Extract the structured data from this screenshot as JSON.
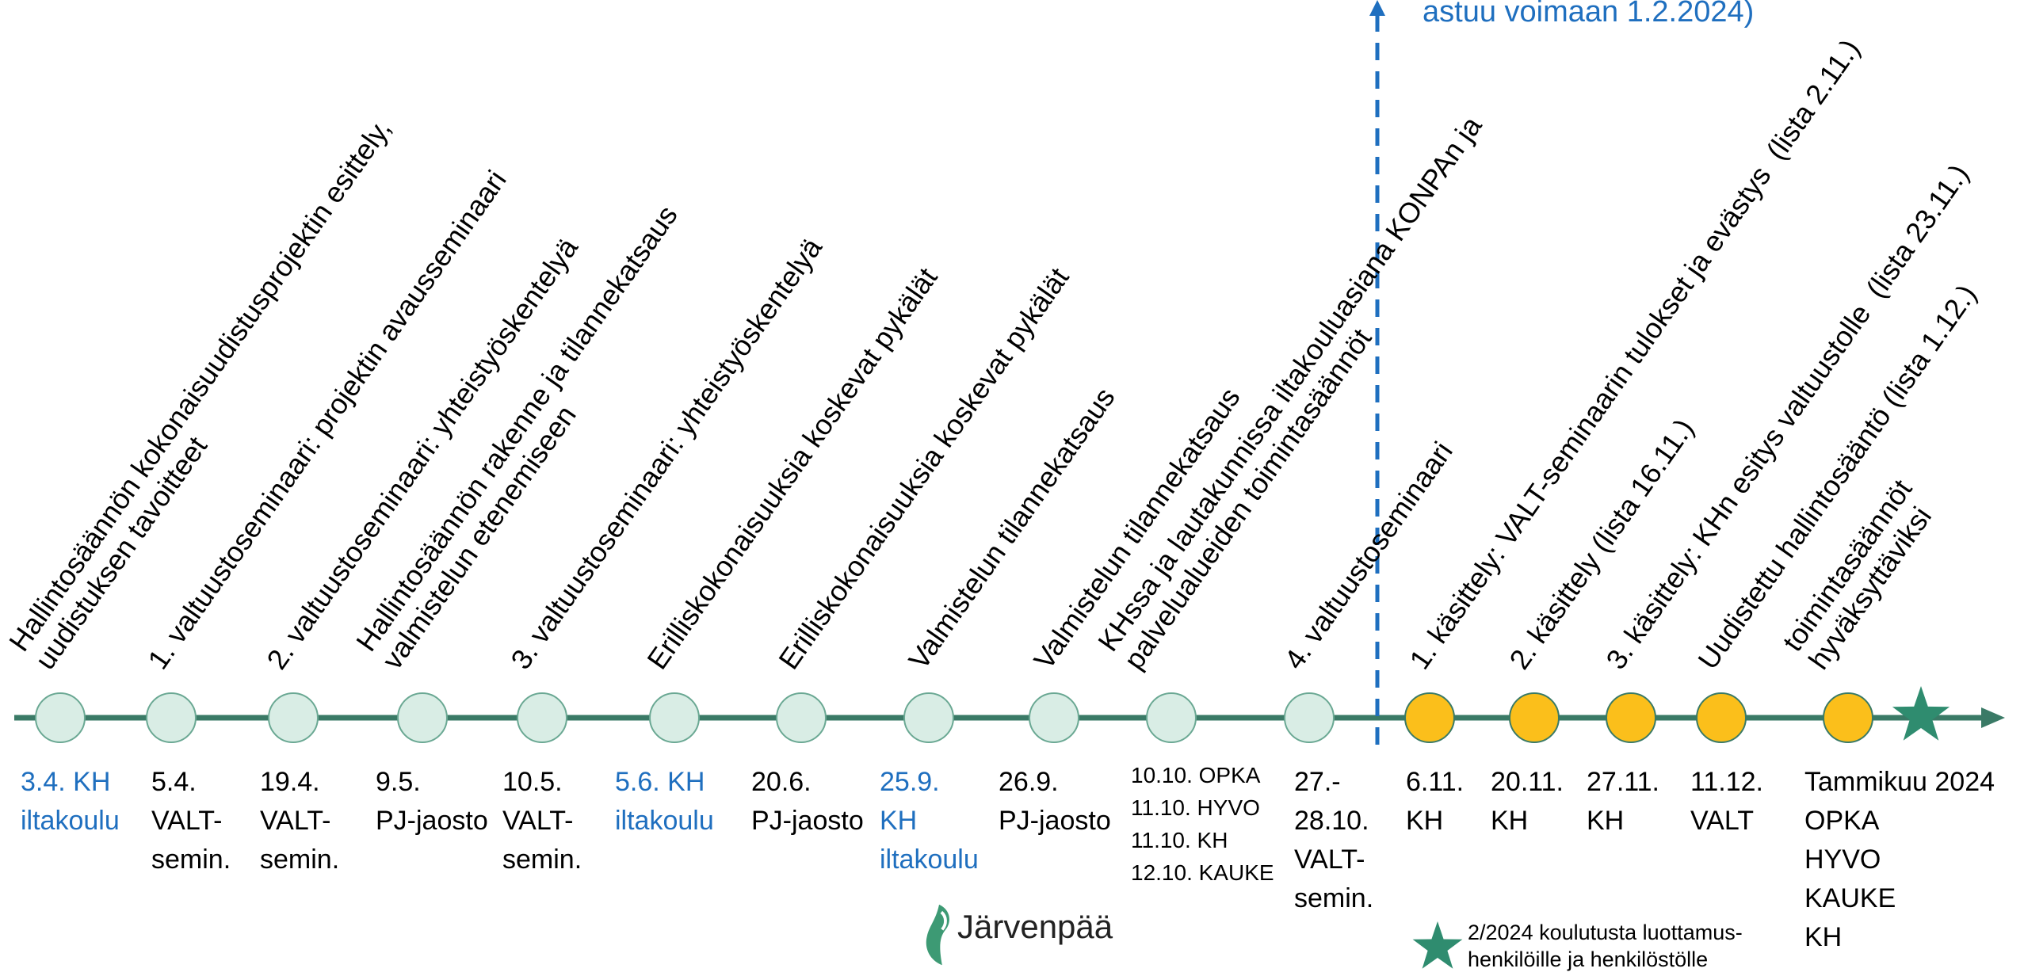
{
  "milestones": [
    {
      "id": "m1",
      "date": "3.4. KH\niltakoulu",
      "date_style": "blue",
      "marker": "past",
      "label": "Hallintosäännön kokonaisuudistusprojektin esittely,\nuudistuksen tavoitteet"
    },
    {
      "id": "m2",
      "date": "5.4.\nVALT-\nsemin.",
      "date_style": "normal",
      "marker": "past",
      "label": "1. valtuustoseminaari: projektin avausseminaari"
    },
    {
      "id": "m3",
      "date": "19.4.\nVALT-\nsemin.",
      "date_style": "normal",
      "marker": "past",
      "label": "2. valtuustoseminaari: yhteistyöskentelyä"
    },
    {
      "id": "m4",
      "date": "9.5.\nPJ-jaosto",
      "date_style": "normal",
      "marker": "past",
      "label": "Hallintosäännön rakenne ja tilannekatsaus\nvalmistelun etenemiseen"
    },
    {
      "id": "m5",
      "date": "10.5.\nVALT-\nsemin.",
      "date_style": "normal",
      "marker": "past",
      "label": "3. valtuustoseminaari: yhteistyöskentelyä"
    },
    {
      "id": "m6",
      "date": "5.6. KH\niltakoulu",
      "date_style": "blue",
      "marker": "past",
      "label": "Erilliskokonaisuuksia koskevat pykälät"
    },
    {
      "id": "m7",
      "date": "20.6.\nPJ-jaosto",
      "date_style": "normal",
      "marker": "past",
      "label": "Erilliskokonaisuuksia koskevat pykälät"
    },
    {
      "id": "m8",
      "date": "25.9.\nKH\niltakoulu",
      "date_style": "blue",
      "marker": "past",
      "label": "Valmistelun tilannekatsaus"
    },
    {
      "id": "m9",
      "date": "26.9.\nPJ-jaosto",
      "date_style": "normal",
      "marker": "past",
      "label": "Valmistelun tilannekatsaus"
    },
    {
      "id": "m10",
      "date": "10.10. OPKA\n11.10. HYVO\n11.10. KH\n12.10. KAUKE",
      "date_style": "small",
      "marker": "past",
      "label": "KHssa ja lautakunnissa iltakouluasiana KONPAn ja\npalvelualueiden toimintasäännöt"
    },
    {
      "id": "m11",
      "date": "27.-\n28.10.\nVALT-\nsemin.",
      "date_style": "normal",
      "marker": "past",
      "label": "4. valtuustoseminaari"
    },
    {
      "id": "m12",
      "date": "6.11.\nKH",
      "date_style": "normal",
      "marker": "future",
      "label": "1. käsittely: VALT-seminaarin tulokset ja evästys  (lista 2.11.)"
    },
    {
      "id": "m13",
      "date": "20.11.\nKH",
      "date_style": "normal",
      "marker": "future",
      "label": "2. käsittely (lista 16.11.)"
    },
    {
      "id": "m14",
      "date": "27.11.\nKH",
      "date_style": "normal",
      "marker": "future",
      "label": "3. käsittely: KHn esitys valtuustolle  (lista 23.11.)"
    },
    {
      "id": "m15",
      "date": "11.12.\nVALT",
      "date_style": "normal",
      "marker": "future",
      "label": "Uudistettu hallintosääntö (lista 1.12.)"
    },
    {
      "id": "m16",
      "date": "Tammikuu 2024\nOPKA\nHYVO\nKAUKE\nKH",
      "date_style": "normal",
      "marker": "future",
      "label": "toimintasäännöt\nhyväksyttäviksi"
    }
  ],
  "effective_note": "astuu voimaan 1.2.2024)",
  "footnote": "2/2024 koulutusta luottamus-\nhenkilöille ja henkilöstölle",
  "logo_text": "Järvenpää",
  "colors": {
    "line": "#3a7a66",
    "past_fill": "#d9ede5",
    "past_stroke": "#6aa893",
    "future_fill": "#fbbf1b",
    "future_stroke": "#3a7a66",
    "star": "#2f8c6f",
    "divider": "#1f6fbf",
    "date_blue": "#1f6fbf",
    "logo_green": "#3d9a74"
  },
  "icons": {
    "end_marker": "star-icon",
    "logo": "jarvenpaa-logo-icon"
  }
}
